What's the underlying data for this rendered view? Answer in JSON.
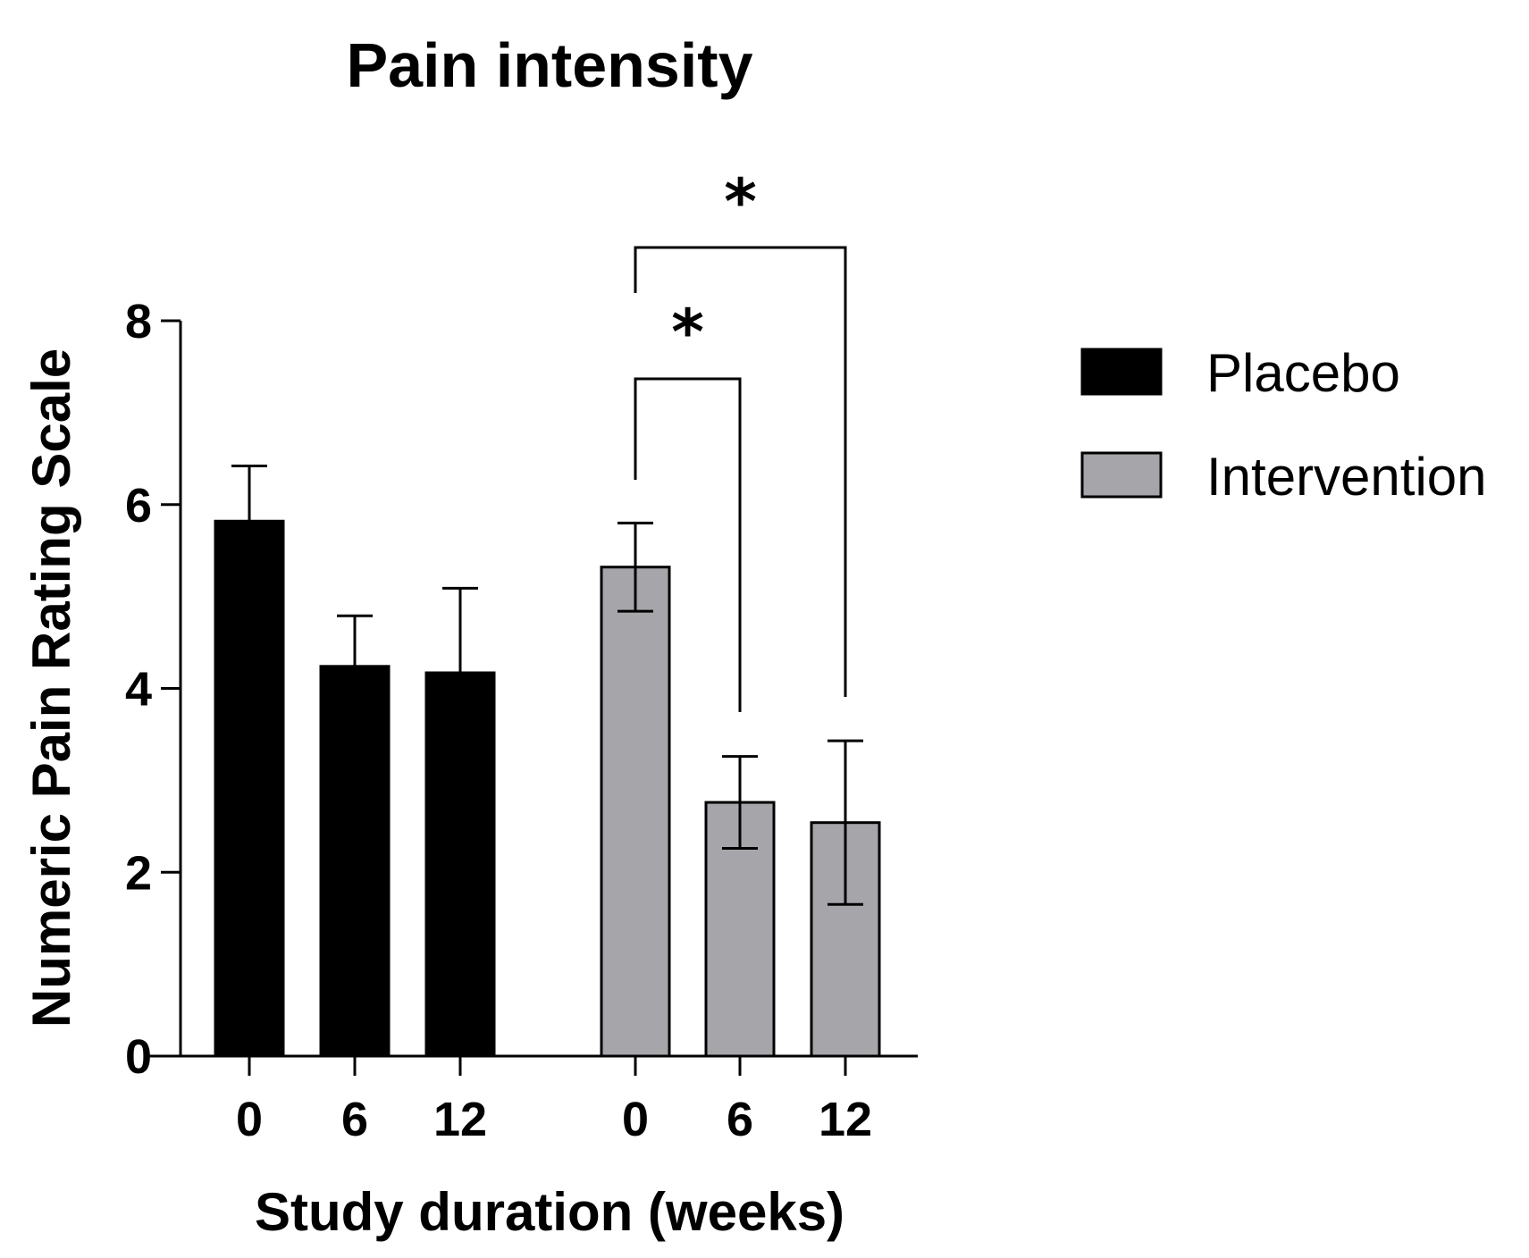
{
  "chart_data": {
    "type": "bar",
    "title": "Pain intensity",
    "xlabel": "Study duration (weeks)",
    "ylabel": "Numeric Pain Rating Scale",
    "ylim": [
      0,
      8
    ],
    "yticks": [
      "0",
      "2",
      "4",
      "6",
      "8"
    ],
    "groups": [
      {
        "name": "Placebo",
        "color": "#000000",
        "categories": [
          "0",
          "6",
          "12"
        ],
        "values": [
          5.82,
          4.24,
          4.17
        ],
        "error": [
          0.6,
          0.55,
          0.92
        ]
      },
      {
        "name": "Intervention",
        "color": "#a6a6aa",
        "categories": [
          "0",
          "6",
          "12"
        ],
        "values": [
          5.32,
          2.76,
          2.54
        ],
        "error": [
          0.48,
          0.5,
          0.89
        ]
      }
    ],
    "significance": [
      {
        "from": "Intervention 0",
        "to": "Intervention 6",
        "label": "*"
      },
      {
        "from": "Intervention 0",
        "to": "Intervention 12",
        "label": "*"
      }
    ],
    "legend": {
      "placement": "right",
      "entries": [
        "Placebo",
        "Intervention"
      ]
    }
  }
}
